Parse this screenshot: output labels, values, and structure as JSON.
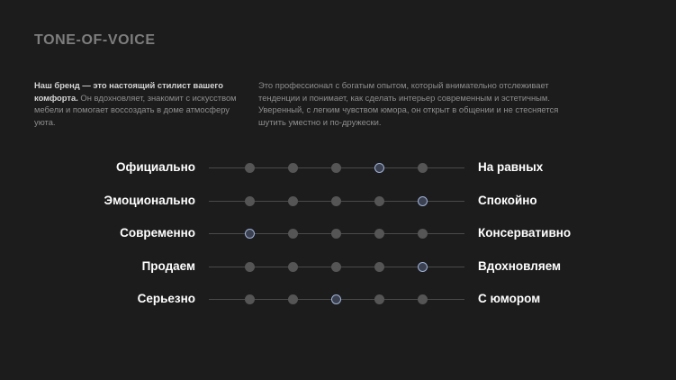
{
  "title": "TONE-OF-VOICE",
  "intro_left": {
    "strong": "Наш бренд — это настоящий стилист вашего комфорта.",
    "rest": " Он вдохновляет, знакомит с искусством мебели и помогает воссоздать в доме атмосферу уюта."
  },
  "intro_right": "Это профессионал с богатым опытом, который внимательно отслеживает тенденции и понимает, как сделать интерьер современным и эстетичным. Уверенный, с легким чувством юмора, он открыт в общении и не стесняется шутить уместно и по-дружески.",
  "scale_points": 5,
  "scales": [
    {
      "left": "Официально",
      "right": "На равных",
      "selected": 4
    },
    {
      "left": "Эмоционально",
      "right": "Спокойно",
      "selected": 5
    },
    {
      "left": "Современно",
      "right": "Консервативно",
      "selected": 1
    },
    {
      "left": "Продаем",
      "right": "Вдохновляем",
      "selected": 5
    },
    {
      "left": "Серьезно",
      "right": "С юмором",
      "selected": 3
    }
  ],
  "colors": {
    "background": "#1c1c1c",
    "dot": "#555555",
    "active_dot_border": "#9fb3d9"
  }
}
